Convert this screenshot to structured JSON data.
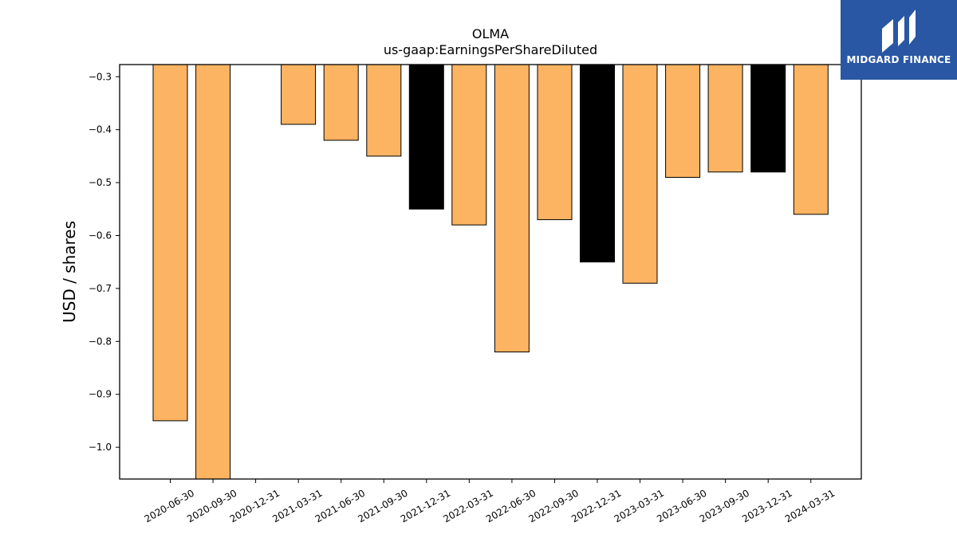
{
  "brand": {
    "name": "MIDGARD FINANCE",
    "bg_color": "#2957A4"
  },
  "chart_data": {
    "type": "bar",
    "title": "OLMA",
    "subtitle": "us-gaap:EarningsPerShareDiluted",
    "ylabel": "USD / shares",
    "xlabel": "",
    "categories": [
      "2020-06-30",
      "2020-09-30",
      "2020-12-31",
      "2021-03-31",
      "2021-06-30",
      "2021-09-30",
      "2021-12-31",
      "2022-03-31",
      "2022-06-30",
      "2022-09-30",
      "2022-12-31",
      "2023-03-31",
      "2023-06-30",
      "2023-09-30",
      "2023-12-31",
      "2024-03-31"
    ],
    "values": [
      -0.95,
      -1.06,
      null,
      -0.39,
      -0.42,
      -0.45,
      -0.55,
      -0.58,
      -0.82,
      -0.57,
      -0.65,
      -0.69,
      -0.49,
      -0.48,
      -0.48,
      -0.56
    ],
    "highlight": [
      false,
      false,
      false,
      false,
      false,
      false,
      true,
      false,
      false,
      false,
      true,
      false,
      false,
      false,
      true,
      false
    ],
    "ylim": [
      -1.06,
      -0.277
    ],
    "yticks": [
      -0.3,
      -0.4,
      -0.5,
      -0.6,
      -0.7,
      -0.8,
      -0.9,
      -1.0
    ],
    "ytick_labels": [
      "−0.3",
      "−0.4",
      "−0.5",
      "−0.6",
      "−0.7",
      "−0.8",
      "−0.9",
      "−1.0"
    ],
    "colors": {
      "bar": "#FDB462",
      "highlight": "#000000",
      "edge": "#000000"
    },
    "grid": false,
    "legend": "none"
  }
}
